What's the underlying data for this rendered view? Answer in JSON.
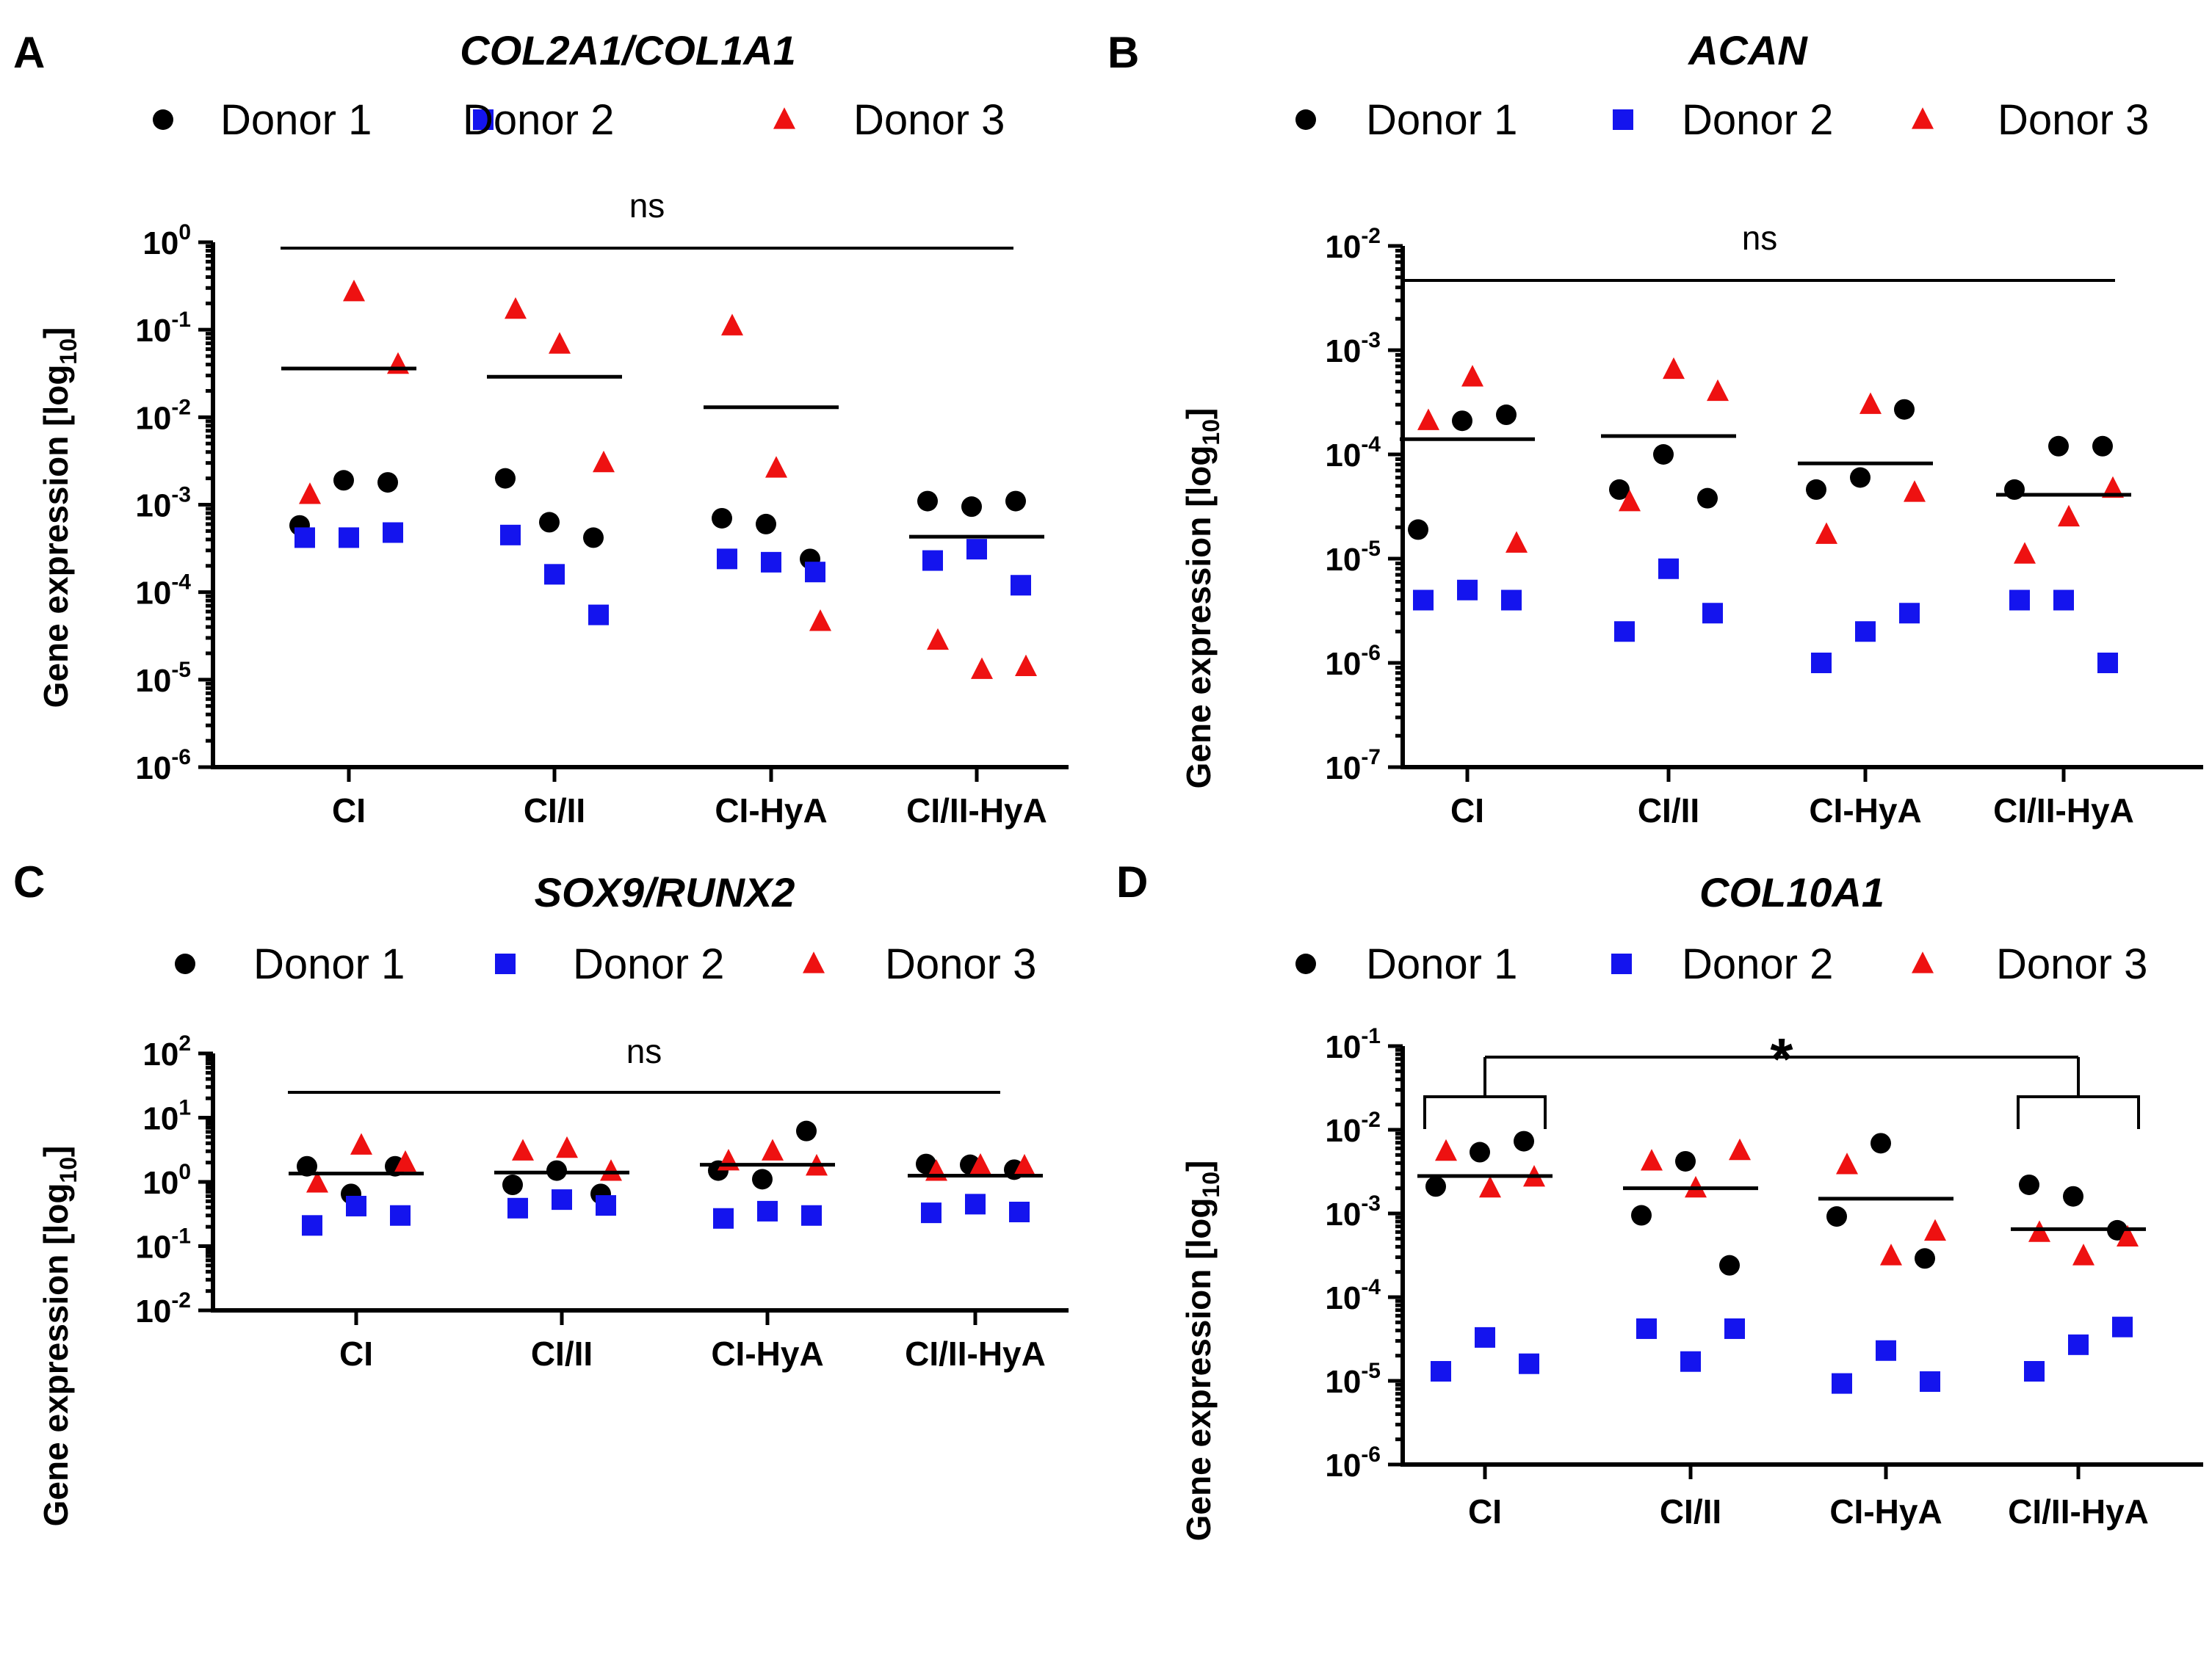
{
  "figure": {
    "legend_labels": [
      "Donor 1",
      "Donor 2",
      "Donor 3"
    ]
  },
  "chart_data": [
    {
      "type": "scatter",
      "panel": "A",
      "title": "COL2A1/COL1A1",
      "xlabel": "",
      "ylabel": "Gene expression [log10]",
      "ylabel_main": "Gene expression [log",
      "ylabel_sub": "10",
      "ylabel_end": "]",
      "yscale": "log",
      "ylim_exp": [
        -6,
        0
      ],
      "ytick_labels": [
        {
          "base": "10",
          "exp": "-6"
        },
        {
          "base": "10",
          "exp": "-5"
        },
        {
          "base": "10",
          "exp": "-4"
        },
        {
          "base": "10",
          "exp": "-3"
        },
        {
          "base": "10",
          "exp": "-2"
        },
        {
          "base": "10",
          "exp": "-1"
        },
        {
          "base": "10",
          "exp": "0"
        }
      ],
      "categories": [
        "CI",
        "CI/II",
        "CI-HyA",
        "CI/II-HyA"
      ],
      "legend": [
        "Donor 1",
        "Donor 2",
        "Donor 3"
      ],
      "series": [
        {
          "name": "Donor 1",
          "marker": "circle",
          "color": "#000000",
          "values": [
            [
              0.00058,
              0.0019,
              0.0018
            ],
            [
              0.002,
              0.00063,
              0.00042
            ],
            [
              0.0007,
              0.0006,
              0.00024
            ],
            [
              0.0011,
              0.00095,
              0.0011
            ]
          ]
        },
        {
          "name": "Donor 2",
          "marker": "square",
          "color": "#1414ee",
          "values": [
            [
              0.00042,
              0.00042,
              0.00048
            ],
            [
              0.00045,
              0.00016,
              5.5e-05
            ],
            [
              0.00024,
              0.00022,
              0.00017
            ],
            [
              0.00023,
              0.00031,
              0.00012
            ]
          ]
        },
        {
          "name": "Donor 3",
          "marker": "triangle",
          "color": "#ee1111",
          "values": [
            [
              0.0013,
              0.27,
              0.04
            ],
            [
              0.17,
              0.068,
              0.003
            ],
            [
              0.11,
              0.0026,
              4.6e-05
            ],
            [
              2.8e-05,
              1.3e-05,
              1.4e-05
            ]
          ]
        }
      ],
      "means": [
        0.036,
        0.029,
        0.013,
        0.00043
      ],
      "significance": {
        "type": "line",
        "label": "ns",
        "from": 0,
        "to": 3
      }
    },
    {
      "type": "scatter",
      "panel": "B",
      "title": "ACAN",
      "xlabel": "",
      "ylabel": "Gene expression [log10]",
      "ylabel_main": "Gene expression [log",
      "ylabel_sub": "10",
      "ylabel_end": "]",
      "yscale": "log",
      "ylim_exp": [
        -7,
        -2
      ],
      "ytick_labels": [
        {
          "base": "10",
          "exp": "-7"
        },
        {
          "base": "10",
          "exp": "-6"
        },
        {
          "base": "10",
          "exp": "-5"
        },
        {
          "base": "10",
          "exp": "-4"
        },
        {
          "base": "10",
          "exp": "-3"
        },
        {
          "base": "10",
          "exp": "-2"
        }
      ],
      "categories": [
        "CI",
        "CI/II",
        "CI-HyA",
        "CI/II-HyA"
      ],
      "legend": [
        "Donor 1",
        "Donor 2",
        "Donor 3"
      ],
      "series": [
        {
          "name": "Donor 1",
          "marker": "circle",
          "color": "#000000",
          "values": [
            [
              1.9e-05,
              0.00021,
              0.00024
            ],
            [
              4.6e-05,
              0.0001,
              3.8e-05
            ],
            [
              4.6e-05,
              6e-05,
              0.00027
            ],
            [
              4.6e-05,
              0.00012,
              0.00012
            ]
          ]
        },
        {
          "name": "Donor 2",
          "marker": "square",
          "color": "#1414ee",
          "values": [
            [
              4e-06,
              5e-06,
              4e-06
            ],
            [
              2e-06,
              8e-06,
              3e-06
            ],
            [
              1e-06,
              2e-06,
              3e-06
            ],
            [
              4e-06,
              4e-06,
              1e-06
            ]
          ]
        },
        {
          "name": "Donor 3",
          "marker": "triangle",
          "color": "#ee1111",
          "values": [
            [
              0.00021,
              0.00055,
              1.4e-05
            ],
            [
              3.5e-05,
              0.00065,
              0.0004
            ],
            [
              1.7e-05,
              0.0003,
              4.3e-05
            ],
            [
              1.1e-05,
              2.5e-05,
              4.7e-05
            ]
          ]
        }
      ],
      "means": [
        0.00014,
        0.00015,
        8.2e-05,
        4.1e-05
      ],
      "significance": {
        "type": "line",
        "label": "ns",
        "from": 0,
        "to": 3
      }
    },
    {
      "type": "scatter",
      "panel": "C",
      "title": "SOX9/RUNX2",
      "xlabel": "",
      "ylabel": "Gene expression [log10]",
      "ylabel_main": "Gene expression [log",
      "ylabel_sub": "10",
      "ylabel_end": "]",
      "yscale": "log",
      "ylim_exp": [
        -2,
        2
      ],
      "ytick_labels": [
        {
          "base": "10",
          "exp": "-2"
        },
        {
          "base": "10",
          "exp": "-1"
        },
        {
          "base": "10",
          "exp": "0"
        },
        {
          "base": "10",
          "exp": "1"
        },
        {
          "base": "10",
          "exp": "2"
        }
      ],
      "categories": [
        "CI",
        "CI/II",
        "CI-HyA",
        "CI/II-HyA"
      ],
      "legend": [
        "Donor 1",
        "Donor 2",
        "Donor 3"
      ],
      "series": [
        {
          "name": "Donor 1",
          "marker": "circle",
          "color": "#000000",
          "values": [
            [
              1.75,
              0.65,
              1.75
            ],
            [
              0.9,
              1.5,
              0.65
            ],
            [
              1.5,
              1.1,
              6.2
            ],
            [
              1.9,
              1.85,
              1.55
            ]
          ]
        },
        {
          "name": "Donor 2",
          "marker": "square",
          "color": "#1414ee",
          "values": [
            [
              0.21,
              0.42,
              0.3
            ],
            [
              0.39,
              0.53,
              0.43
            ],
            [
              0.27,
              0.35,
              0.3
            ],
            [
              0.33,
              0.45,
              0.34
            ]
          ]
        },
        {
          "name": "Donor 3",
          "marker": "triangle",
          "color": "#ee1111",
          "values": [
            [
              0.95,
              3.7,
              2.0
            ],
            [
              3.0,
              3.3,
              1.45
            ],
            [
              2.1,
              3.0,
              1.75
            ],
            [
              1.45,
              1.8,
              1.75
            ]
          ]
        }
      ],
      "means": [
        1.35,
        1.4,
        1.85,
        1.25
      ],
      "significance": {
        "type": "line",
        "label": "ns",
        "from": 0,
        "to": 3
      }
    },
    {
      "type": "scatter",
      "panel": "D",
      "title": "COL10A1",
      "xlabel": "",
      "ylabel": "Gene expression [log10]",
      "ylabel_main": "Gene expression [log",
      "ylabel_sub": "10",
      "ylabel_end": "]",
      "yscale": "log",
      "ylim_exp": [
        -6,
        -1
      ],
      "ytick_labels": [
        {
          "base": "10",
          "exp": "-6"
        },
        {
          "base": "10",
          "exp": "-5"
        },
        {
          "base": "10",
          "exp": "-4"
        },
        {
          "base": "10",
          "exp": "-3"
        },
        {
          "base": "10",
          "exp": "-2"
        },
        {
          "base": "10",
          "exp": "-1"
        }
      ],
      "categories": [
        "CI",
        "CI/II",
        "CI-HyA",
        "CI/II-HyA"
      ],
      "legend": [
        "Donor 1",
        "Donor 2",
        "Donor 3"
      ],
      "series": [
        {
          "name": "Donor 1",
          "marker": "circle",
          "color": "#000000",
          "values": [
            [
              0.0021,
              0.0054,
              0.0073
            ],
            [
              0.00095,
              0.0042,
              0.00024
            ],
            [
              0.00092,
              0.0069,
              0.00029
            ],
            [
              0.0022,
              0.0016,
              0.00063
            ]
          ]
        },
        {
          "name": "Donor 2",
          "marker": "square",
          "color": "#1414ee",
          "values": [
            [
              1.3e-05,
              3.3e-05,
              1.6e-05
            ],
            [
              4.2e-05,
              1.7e-05,
              4.2e-05
            ],
            [
              9.3e-06,
              2.3e-05,
              9.8e-06
            ],
            [
              1.3e-05,
              2.7e-05,
              4.4e-05
            ]
          ]
        },
        {
          "name": "Donor 3",
          "marker": "triangle",
          "color": "#ee1111",
          "values": [
            [
              0.0055,
              0.002,
              0.0027
            ],
            [
              0.0042,
              0.002,
              0.0056
            ],
            [
              0.0038,
              0.00031,
              0.00061
            ],
            [
              0.00059,
              0.00031,
              0.00052
            ]
          ]
        }
      ],
      "means": [
        0.0028,
        0.002,
        0.0015,
        0.00065
      ],
      "significance": {
        "type": "bracket",
        "label": "*",
        "from": 0,
        "to": 3
      }
    }
  ]
}
